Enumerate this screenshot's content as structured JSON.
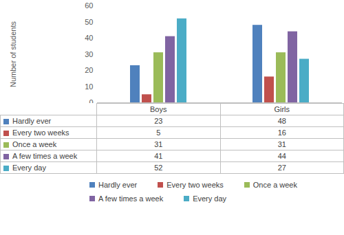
{
  "chart_data": {
    "type": "bar",
    "y_label": "Number of students",
    "categories": [
      "Boys",
      "Girls"
    ],
    "series": [
      {
        "name": "Hardly ever",
        "color": "#4f81bd",
        "values": [
          23,
          48
        ]
      },
      {
        "name": "Every two weeks",
        "color": "#c0504d",
        "values": [
          5,
          16
        ]
      },
      {
        "name": "Once a week",
        "color": "#9bbb59",
        "values": [
          31,
          31
        ]
      },
      {
        "name": "A few times a week",
        "color": "#8064a2",
        "values": [
          41,
          44
        ]
      },
      {
        "name": "Every day",
        "color": "#4bacc6",
        "values": [
          52,
          27
        ]
      }
    ],
    "ylim": [
      0,
      60
    ],
    "yticks": [
      0,
      10,
      20,
      30,
      40,
      50,
      60
    ],
    "grid": false,
    "legend": "bottom"
  }
}
